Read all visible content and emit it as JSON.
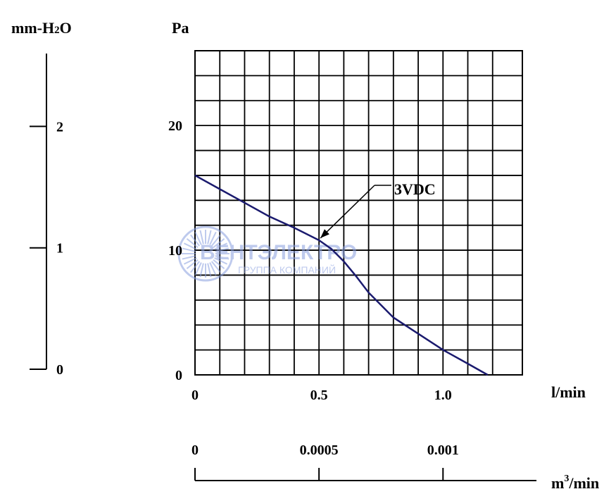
{
  "chart_data": {
    "type": "line",
    "title": "",
    "x_unit": "l/min",
    "y_unit": "Pa",
    "xlim": [
      0,
      1.32
    ],
    "ylim": [
      0,
      26
    ],
    "x_ticks": [
      {
        "value": 0,
        "label": "0"
      },
      {
        "value": 0.5,
        "label": "0.5"
      },
      {
        "value": 1.0,
        "label": "1.0"
      }
    ],
    "y_ticks": [
      {
        "value": 0,
        "label": "0"
      },
      {
        "value": 10,
        "label": "10"
      },
      {
        "value": 20,
        "label": "20"
      }
    ],
    "grid": true,
    "grid_step_x": 0.1,
    "grid_step_y": 2,
    "series": [
      {
        "name": "3VDC",
        "color": "#1a1a6e",
        "x": [
          0,
          0.1,
          0.2,
          0.3,
          0.4,
          0.5,
          0.55,
          0.6,
          0.65,
          0.7,
          0.8,
          0.9,
          1.0,
          1.1,
          1.18
        ],
        "y": [
          16.0,
          14.9,
          13.8,
          12.7,
          11.8,
          10.8,
          10.1,
          9.1,
          7.9,
          6.6,
          4.6,
          3.3,
          2.0,
          0.9,
          0.0
        ]
      }
    ],
    "annotation": {
      "text": "3VDC",
      "x": 0.5,
      "y": 10.8
    },
    "secondary_y": {
      "unit": "mm-H2O",
      "unit_base": "mm-H",
      "unit_sub": "2",
      "unit_end": "O",
      "range": [
        0,
        2.6
      ],
      "ticks": [
        {
          "value": 0,
          "label": "0"
        },
        {
          "value": 1,
          "label": "1"
        },
        {
          "value": 2,
          "label": "2"
        }
      ]
    },
    "secondary_x": {
      "unit": "m3/min",
      "unit_base": "m",
      "unit_sup": "3",
      "unit_end": "/min",
      "ticks": [
        {
          "value": 0,
          "label": "0"
        },
        {
          "value": 0.0005,
          "label": "0.0005"
        },
        {
          "value": 0.001,
          "label": "0.001"
        }
      ]
    }
  },
  "watermark": {
    "brand": "ВЕНТЭЛЕКТРО",
    "tagline": "ГРУППА КОМПАНИЙ",
    "color": "#8aa0e0"
  }
}
